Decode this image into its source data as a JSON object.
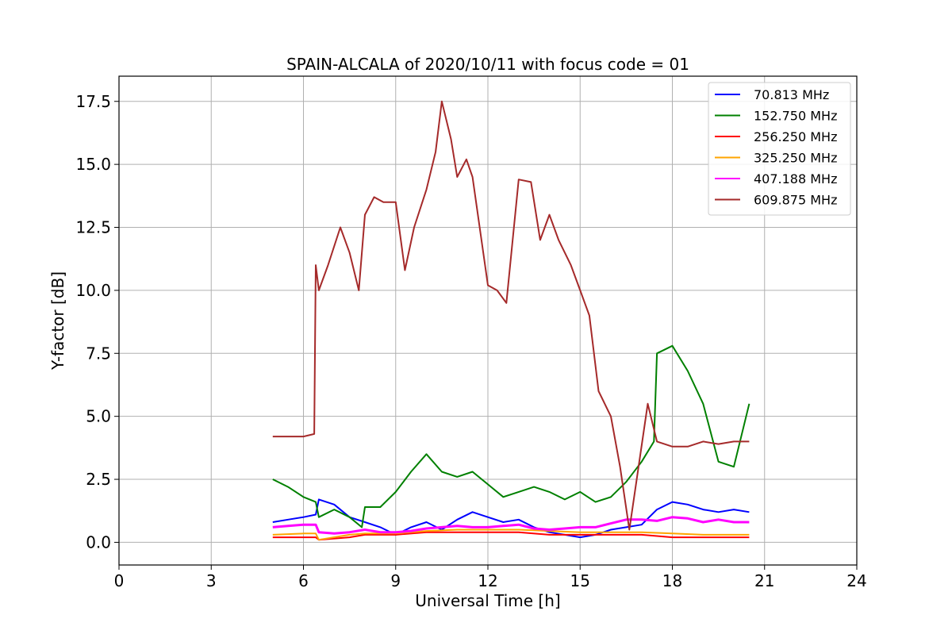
{
  "chart_data": {
    "type": "line",
    "title": "SPAIN-ALCALA of 2020/10/11 with focus code = 01",
    "xlabel": "Universal Time [h]",
    "ylabel": "Y-factor [dB]",
    "xlim": [
      0,
      24
    ],
    "ylim": [
      -0.9,
      18.5
    ],
    "xticks": [
      0,
      3,
      6,
      9,
      12,
      15,
      18,
      21,
      24
    ],
    "xtick_labels": [
      "0",
      "3",
      "6",
      "9",
      "12",
      "15",
      "18",
      "21",
      "24"
    ],
    "yticks": [
      0.0,
      2.5,
      5.0,
      7.5,
      10.0,
      12.5,
      15.0,
      17.5
    ],
    "ytick_labels": [
      "0.0",
      "2.5",
      "5.0",
      "7.5",
      "10.0",
      "12.5",
      "15.0",
      "17.5"
    ],
    "grid": true,
    "legend_position": "top-right",
    "series": [
      {
        "name": " 70.813 MHz",
        "color": "#0000ff",
        "x": [
          5.0,
          5.5,
          6.0,
          6.4,
          6.5,
          7.0,
          7.5,
          8.0,
          8.5,
          9.0,
          9.5,
          10.0,
          10.5,
          11.0,
          11.5,
          12.0,
          12.5,
          13.0,
          13.5,
          14.0,
          14.5,
          15.0,
          15.5,
          16.0,
          16.5,
          17.0,
          17.5,
          18.0,
          18.5,
          19.0,
          19.5,
          20.0,
          20.5
        ],
        "y": [
          0.8,
          0.9,
          1.0,
          1.1,
          1.7,
          1.5,
          1.0,
          0.8,
          0.6,
          0.3,
          0.6,
          0.8,
          0.5,
          0.9,
          1.2,
          1.0,
          0.8,
          0.9,
          0.6,
          0.4,
          0.3,
          0.2,
          0.3,
          0.5,
          0.6,
          0.7,
          1.3,
          1.6,
          1.5,
          1.3,
          1.2,
          1.3,
          1.2
        ]
      },
      {
        "name": "152.750 MHz",
        "color": "#008000",
        "x": [
          5.0,
          5.5,
          6.0,
          6.4,
          6.5,
          7.0,
          7.5,
          7.9,
          8.0,
          8.5,
          9.0,
          9.5,
          10.0,
          10.5,
          11.0,
          11.5,
          12.0,
          12.5,
          13.0,
          13.5,
          14.0,
          14.5,
          15.0,
          15.5,
          16.0,
          16.5,
          17.0,
          17.4,
          17.5,
          18.0,
          18.5,
          19.0,
          19.5,
          20.0,
          20.5
        ],
        "y": [
          2.5,
          2.2,
          1.8,
          1.6,
          1.0,
          1.3,
          1.0,
          0.6,
          1.4,
          1.4,
          2.0,
          2.8,
          3.5,
          2.8,
          2.6,
          2.8,
          2.3,
          1.8,
          2.0,
          2.2,
          2.0,
          1.7,
          2.0,
          1.6,
          1.8,
          2.4,
          3.2,
          4.0,
          7.5,
          7.8,
          6.8,
          5.5,
          3.2,
          3.0,
          5.5
        ]
      },
      {
        "name": "256.250 MHz",
        "color": "#ff0000",
        "x": [
          5.0,
          6.0,
          6.4,
          6.5,
          7.5,
          8.0,
          9.0,
          10.0,
          11.0,
          12.0,
          13.0,
          14.0,
          15.0,
          16.0,
          17.0,
          18.0,
          19.0,
          20.0,
          20.5
        ],
        "y": [
          0.2,
          0.2,
          0.2,
          0.1,
          0.2,
          0.3,
          0.3,
          0.4,
          0.4,
          0.4,
          0.4,
          0.3,
          0.3,
          0.3,
          0.3,
          0.2,
          0.2,
          0.2,
          0.2
        ]
      },
      {
        "name": "325.250 MHz",
        "color": "#ffa500",
        "x": [
          5.0,
          6.0,
          6.4,
          6.5,
          7.5,
          8.0,
          9.0,
          10.0,
          11.0,
          12.0,
          13.0,
          14.0,
          15.0,
          16.0,
          17.0,
          18.0,
          19.0,
          20.0,
          20.5
        ],
        "y": [
          0.3,
          0.35,
          0.35,
          0.1,
          0.3,
          0.35,
          0.35,
          0.45,
          0.5,
          0.5,
          0.5,
          0.45,
          0.4,
          0.4,
          0.4,
          0.35,
          0.3,
          0.3,
          0.3
        ]
      },
      {
        "name": "407.188 MHz",
        "color": "#ff00ff",
        "x": [
          5.0,
          5.5,
          6.0,
          6.4,
          6.5,
          7.0,
          7.5,
          8.0,
          8.5,
          9.0,
          9.5,
          10.0,
          10.5,
          11.0,
          11.5,
          12.0,
          12.5,
          13.0,
          13.5,
          14.0,
          14.5,
          15.0,
          15.5,
          16.0,
          16.5,
          17.0,
          17.5,
          18.0,
          18.5,
          19.0,
          19.5,
          20.0,
          20.5
        ],
        "y": [
          0.6,
          0.65,
          0.7,
          0.7,
          0.4,
          0.35,
          0.4,
          0.5,
          0.4,
          0.4,
          0.45,
          0.55,
          0.6,
          0.65,
          0.6,
          0.6,
          0.65,
          0.7,
          0.55,
          0.5,
          0.55,
          0.6,
          0.6,
          0.75,
          0.9,
          0.9,
          0.85,
          1.0,
          0.95,
          0.8,
          0.9,
          0.8,
          0.8
        ]
      },
      {
        "name": "609.875 MHz",
        "color": "#a52a2a",
        "x": [
          5.0,
          5.5,
          6.0,
          6.35,
          6.4,
          6.5,
          6.8,
          7.2,
          7.5,
          7.8,
          8.0,
          8.3,
          8.6,
          9.0,
          9.3,
          9.6,
          10.0,
          10.3,
          10.5,
          10.8,
          11.0,
          11.3,
          11.5,
          12.0,
          12.3,
          12.6,
          13.0,
          13.4,
          13.7,
          14.0,
          14.3,
          14.7,
          15.0,
          15.3,
          15.6,
          16.0,
          16.3,
          16.6,
          16.9,
          17.2,
          17.5,
          18.0,
          18.5,
          19.0,
          19.5,
          20.0,
          20.5
        ],
        "y": [
          4.2,
          4.2,
          4.2,
          4.3,
          11.0,
          10.0,
          11.0,
          12.5,
          11.5,
          10.0,
          13.0,
          13.7,
          13.5,
          13.5,
          10.8,
          12.5,
          14.0,
          15.5,
          17.5,
          16.0,
          14.5,
          15.2,
          14.5,
          10.2,
          10.0,
          9.5,
          14.4,
          14.3,
          12.0,
          13.0,
          12.0,
          11.0,
          10.0,
          9.0,
          6.0,
          5.0,
          3.0,
          0.5,
          3.0,
          5.5,
          4.0,
          3.8,
          3.8,
          4.0,
          3.9,
          4.0,
          4.0
        ]
      }
    ]
  }
}
